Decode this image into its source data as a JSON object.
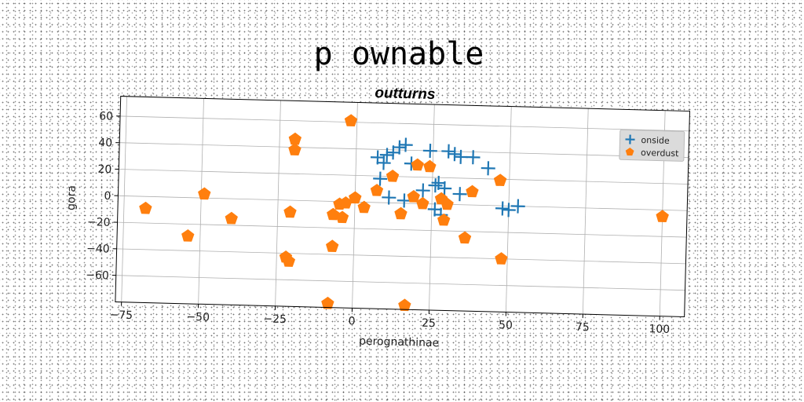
{
  "chart_data": {
    "type": "scatter",
    "title": "p ownable",
    "subtitle": "outturns",
    "xlabel": "perognathinae",
    "ylabel": "gora",
    "xlim": [
      -77,
      108
    ],
    "ylim": [
      -80,
      75
    ],
    "xticks": [
      -75,
      -50,
      -25,
      0,
      25,
      50,
      75,
      100
    ],
    "yticks": [
      -60,
      -40,
      -20,
      0,
      20,
      40,
      60
    ],
    "grid": true,
    "legend_position": "top-right",
    "series": [
      {
        "name": "onside",
        "marker": "plus",
        "color": "#1f77b4",
        "points": [
          [
            7,
            34
          ],
          [
            10,
            36
          ],
          [
            12,
            38
          ],
          [
            14,
            42
          ],
          [
            16,
            44
          ],
          [
            9,
            30
          ],
          [
            18,
            30
          ],
          [
            24,
            40
          ],
          [
            30,
            40
          ],
          [
            32,
            38
          ],
          [
            34,
            36
          ],
          [
            38,
            36
          ],
          [
            43,
            28
          ],
          [
            8,
            18
          ],
          [
            11,
            4
          ],
          [
            16,
            2
          ],
          [
            22,
            10
          ],
          [
            26,
            14
          ],
          [
            27,
            16
          ],
          [
            29,
            12
          ],
          [
            34,
            8
          ],
          [
            26,
            -4
          ],
          [
            28,
            -8
          ],
          [
            48,
            -2
          ],
          [
            50,
            -3
          ],
          [
            53,
            0
          ]
        ]
      },
      {
        "name": "overdust",
        "marker": "pentagon",
        "color": "#ff7f0e",
        "points": [
          [
            -2,
            61
          ],
          [
            -20,
            46
          ],
          [
            -20,
            38
          ],
          [
            -68,
            -9
          ],
          [
            -49,
            3
          ],
          [
            -54,
            -29
          ],
          [
            -40,
            -15
          ],
          [
            -21,
            -9
          ],
          [
            -22,
            -43
          ],
          [
            -21,
            -46
          ],
          [
            -8,
            -77
          ],
          [
            -7,
            -34
          ],
          [
            -7,
            -10
          ],
          [
            -5,
            -2
          ],
          [
            -4,
            -12
          ],
          [
            -3,
            -1
          ],
          [
            0,
            3
          ],
          [
            3,
            -4
          ],
          [
            7,
            9
          ],
          [
            12,
            20
          ],
          [
            15,
            -8
          ],
          [
            19,
            5
          ],
          [
            20,
            29
          ],
          [
            22,
            0
          ],
          [
            24,
            28
          ],
          [
            28,
            4
          ],
          [
            30,
            0
          ],
          [
            29,
            -12
          ],
          [
            36,
            -25
          ],
          [
            38,
            10
          ],
          [
            47,
            19
          ],
          [
            48,
            -40
          ],
          [
            17,
            -77
          ],
          [
            100,
            -5
          ]
        ]
      }
    ]
  }
}
